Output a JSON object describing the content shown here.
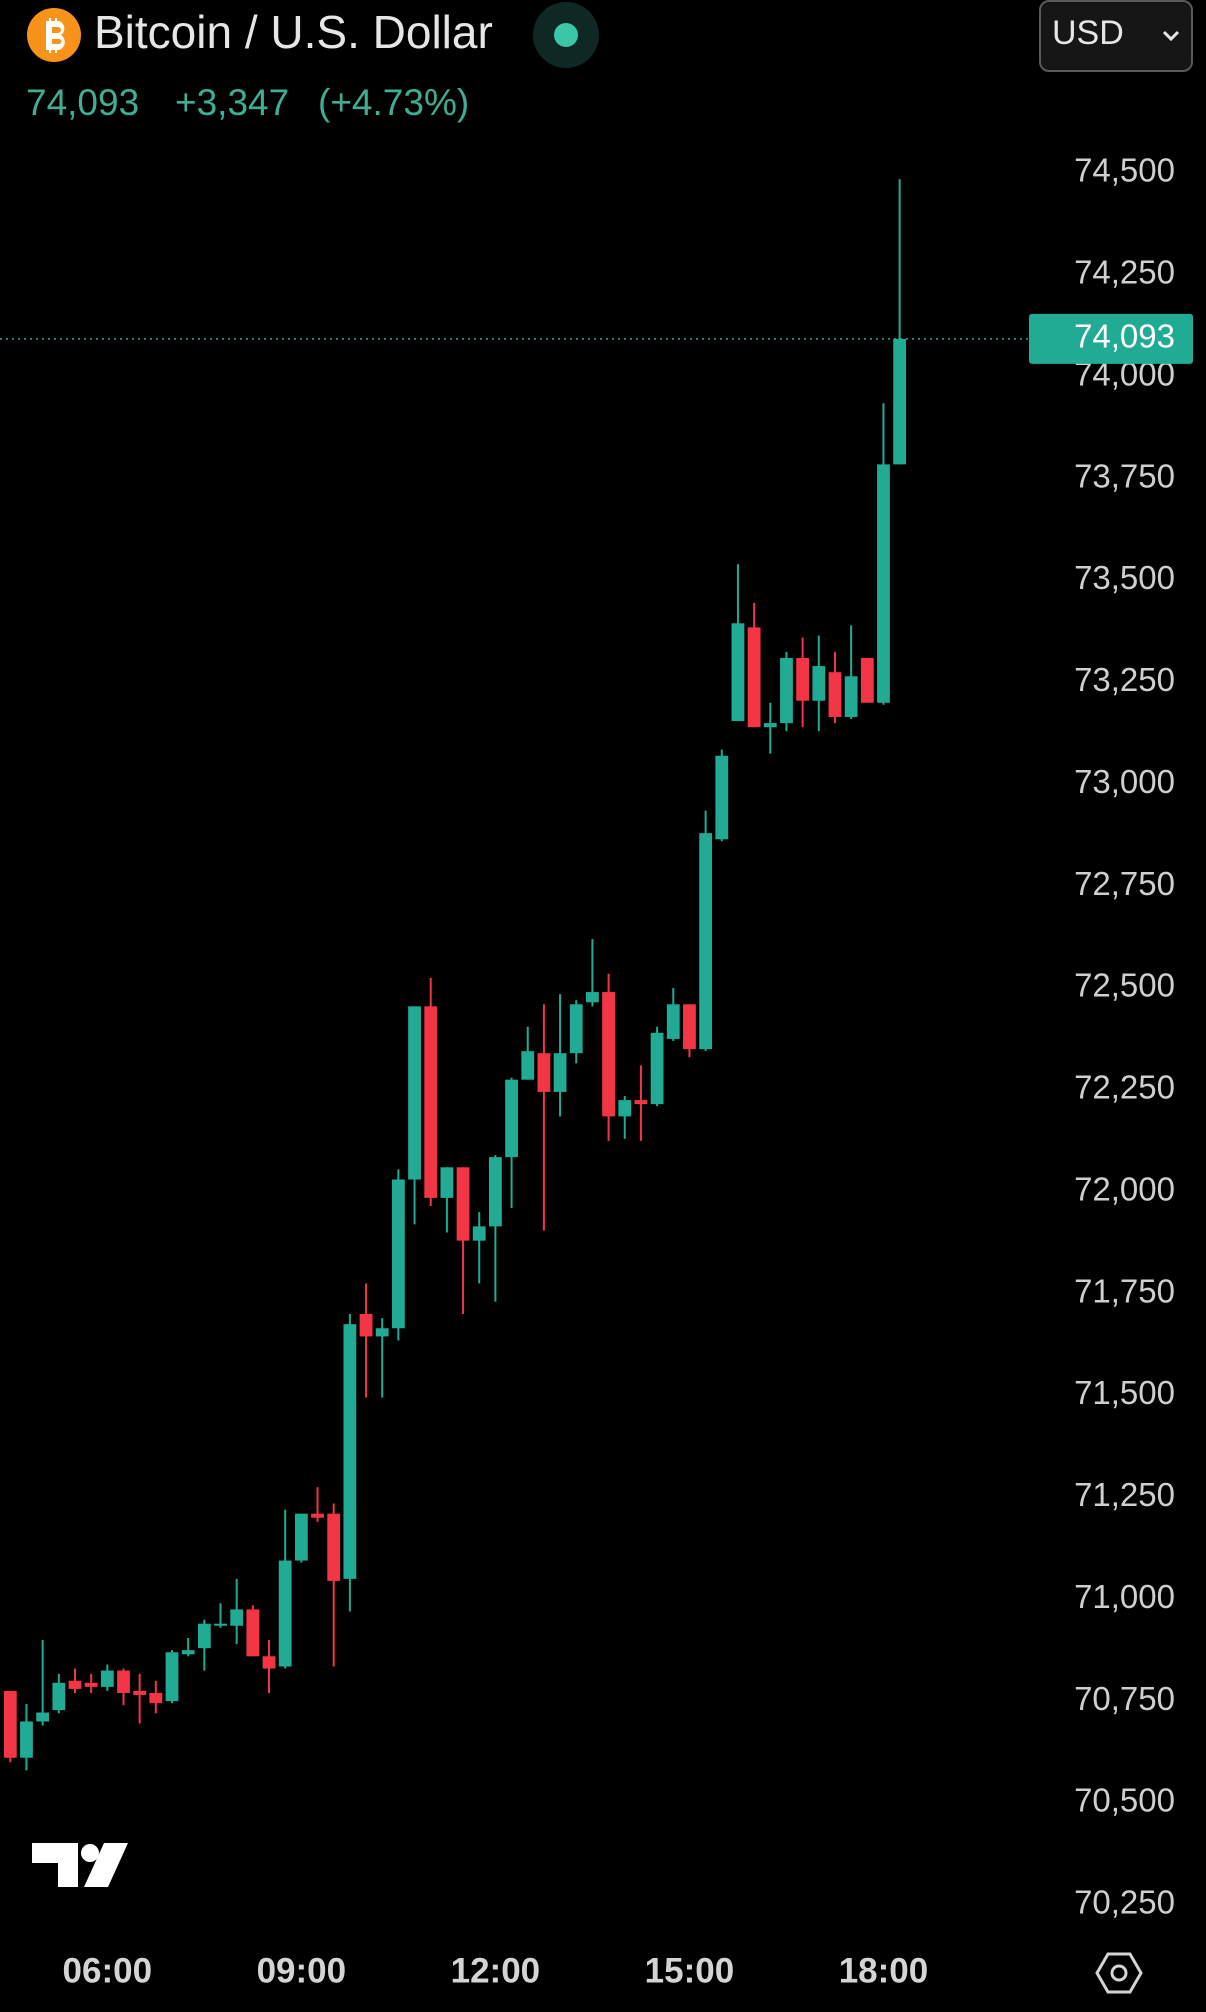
{
  "header": {
    "title": "Bitcoin / U.S. Dollar",
    "price": "74,093",
    "change": "+3,347",
    "change_pct": "(+4.73%)",
    "currency": "USD"
  },
  "chart_data": {
    "type": "candlestick",
    "categories": [
      null,
      null,
      null,
      null,
      null,
      null,
      "06:00",
      null,
      null,
      null,
      null,
      null,
      null,
      null,
      null,
      null,
      null,
      null,
      "09:00",
      null,
      null,
      null,
      null,
      null,
      null,
      null,
      null,
      null,
      null,
      null,
      "12:00",
      null,
      null,
      null,
      null,
      null,
      null,
      null,
      null,
      null,
      null,
      null,
      "15:00",
      null,
      null,
      null,
      null,
      null,
      null,
      null,
      null,
      null,
      null,
      null,
      "18:00",
      null
    ],
    "open": [
      70775,
      70611,
      70700,
      70728,
      70800,
      70795,
      70785,
      70825,
      70775,
      70770,
      70750,
      70865,
      70880,
      70935,
      70935,
      70975,
      70860,
      70835,
      71095,
      71210,
      71210,
      71050,
      71700,
      71645,
      71665,
      72030,
      72455,
      71985,
      72060,
      71880,
      71915,
      72085,
      72275,
      72340,
      72245,
      72340,
      72465,
      72490,
      72185,
      72225,
      72215,
      72375,
      72460,
      72350,
      72865,
      73155,
      73385,
      73140,
      73150,
      73310,
      73205,
      73275,
      73165,
      73310,
      73200,
      73785
    ],
    "high": [
      70775,
      70743,
      70900,
      70817,
      70830,
      70817,
      70840,
      70830,
      70817,
      70800,
      70875,
      70905,
      70950,
      70990,
      71050,
      70985,
      70900,
      71220,
      71210,
      71275,
      71235,
      71700,
      71775,
      71690,
      72055,
      72455,
      72525,
      72060,
      72060,
      71950,
      72090,
      72280,
      72405,
      72460,
      72485,
      72470,
      72620,
      72535,
      72235,
      72310,
      72405,
      72500,
      72460,
      72935,
      73085,
      73540,
      73445,
      73200,
      73325,
      73360,
      73365,
      73325,
      73390,
      73310,
      73935,
      74485
    ],
    "low": [
      70600,
      70580,
      70690,
      70720,
      70770,
      70770,
      70775,
      70740,
      70695,
      70720,
      70745,
      70860,
      70825,
      70930,
      70890,
      70860,
      70770,
      70830,
      71090,
      71190,
      70835,
      70970,
      71495,
      71495,
      71635,
      71920,
      71965,
      71900,
      71700,
      71775,
      71730,
      71960,
      72275,
      71905,
      72185,
      72315,
      72455,
      72125,
      72130,
      72125,
      72210,
      72370,
      72330,
      72345,
      72860,
      73155,
      73140,
      73075,
      73130,
      73140,
      73130,
      73150,
      73160,
      73200,
      73195,
      73785
    ],
    "close": [
      70611,
      70700,
      70722,
      70795,
      70780,
      70785,
      70825,
      70770,
      70765,
      70745,
      70870,
      70875,
      70940,
      70940,
      70975,
      70860,
      70830,
      71095,
      71210,
      71200,
      71045,
      71675,
      71645,
      71665,
      72030,
      72455,
      71985,
      72060,
      71880,
      71915,
      72085,
      72275,
      72345,
      72245,
      72340,
      72460,
      72490,
      72185,
      72225,
      72215,
      72390,
      72460,
      72350,
      72880,
      73070,
      73395,
      73140,
      73150,
      73310,
      73205,
      73290,
      73165,
      73265,
      73200,
      73785,
      74093
    ],
    "up_color": "#22ab94",
    "down_color": "#f23645",
    "last_price": 74093,
    "last_price_label": "74,093",
    "ylim": [
      70100,
      74700
    ],
    "yticks": [
      {
        "value": 70250,
        "label": "70,250"
      },
      {
        "value": 70500,
        "label": "70,500"
      },
      {
        "value": 70750,
        "label": "70,750"
      },
      {
        "value": 71000,
        "label": "71,000"
      },
      {
        "value": 71250,
        "label": "71,250"
      },
      {
        "value": 71500,
        "label": "71,500"
      },
      {
        "value": 71750,
        "label": "71,750"
      },
      {
        "value": 72000,
        "label": "72,000"
      },
      {
        "value": 72250,
        "label": "72,250"
      },
      {
        "value": 72500,
        "label": "72,500"
      },
      {
        "value": 72750,
        "label": "72,750"
      },
      {
        "value": 73000,
        "label": "73,000"
      },
      {
        "value": 73250,
        "label": "73,250"
      },
      {
        "value": 73500,
        "label": "73,500"
      },
      {
        "value": 73750,
        "label": "73,750"
      },
      {
        "value": 74000,
        "label": "74,000"
      },
      {
        "value": 74250,
        "label": "74,250"
      },
      {
        "value": 74500,
        "label": "74,500"
      }
    ]
  }
}
